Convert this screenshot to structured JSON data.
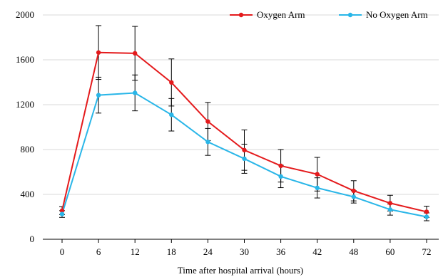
{
  "chart_data": {
    "type": "line",
    "title": "",
    "xlabel": "Time after hospital arrival (hours)",
    "ylabel": "",
    "categories": [
      "0",
      "6",
      "12",
      "18",
      "24",
      "30",
      "36",
      "42",
      "48",
      "60",
      "72"
    ],
    "ylim": [
      0,
      2000
    ],
    "yticks": [
      0,
      400,
      800,
      1200,
      1600,
      2000
    ],
    "grid": true,
    "legend": "top-right",
    "series": [
      {
        "name": "Oxygen Arm",
        "color": "#e41a1c",
        "values": [
          255,
          1665,
          1658,
          1398,
          1050,
          795,
          655,
          580,
          432,
          322,
          245
        ],
        "error": [
          35,
          240,
          240,
          210,
          170,
          180,
          145,
          150,
          90,
          70,
          50
        ]
      },
      {
        "name": "No Oxygen Arm",
        "color": "#29b6e8",
        "values": [
          225,
          1285,
          1305,
          1110,
          868,
          718,
          560,
          458,
          378,
          265,
          200
        ],
        "error": [
          30,
          160,
          160,
          145,
          120,
          130,
          100,
          90,
          55,
          50,
          35
        ]
      }
    ]
  }
}
